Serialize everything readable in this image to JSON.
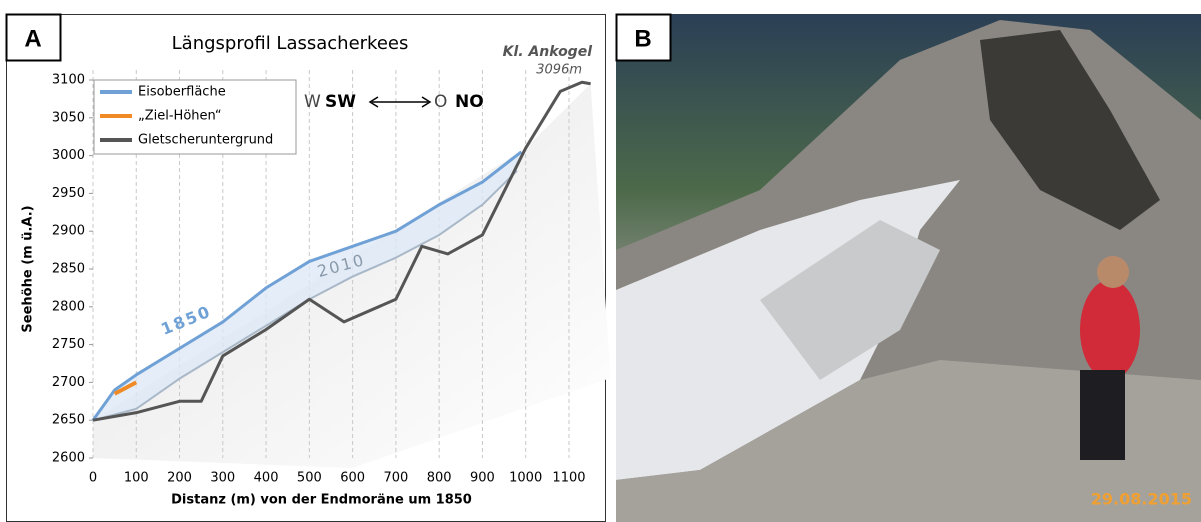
{
  "panels": {
    "a": "A",
    "b": "B"
  },
  "chart_data": {
    "type": "line",
    "title": "Längsprofil Lassacherkees",
    "x_label": "Distanz (m) von der Endmoräne um 1850",
    "y_label": "Seehöhe (m ü.A.)",
    "xlim": [
      0,
      1150
    ],
    "ylim": [
      2600,
      3100
    ],
    "xticks": [
      0,
      100,
      200,
      300,
      400,
      500,
      600,
      700,
      800,
      900,
      1000,
      1100
    ],
    "yticks": [
      2600,
      2650,
      2700,
      2750,
      2800,
      2850,
      2900,
      2950,
      3000,
      3050,
      3100
    ],
    "grid": true,
    "legend": "upper left",
    "series": [
      {
        "name": "Eisoberfläche",
        "color": "#6fa1d6",
        "x": [
          0,
          50,
          100,
          200,
          300,
          400,
          500,
          600,
          700,
          800,
          900,
          990
        ],
        "values": [
          2650,
          2690,
          2710,
          2745,
          2780,
          2825,
          2860,
          2880,
          2900,
          2935,
          2965,
          3005
        ]
      },
      {
        "name": "„Ziel-Höhen“",
        "color": "#f08a24",
        "x": [
          50,
          100
        ],
        "values": [
          2685,
          2700
        ]
      },
      {
        "name": "Gletscheruntergrund",
        "color": "#555555",
        "x": [
          0,
          100,
          200,
          250,
          300,
          400,
          500,
          580,
          700,
          760,
          820,
          900,
          1000,
          1080,
          1130,
          1150
        ],
        "values": [
          2650,
          2660,
          2675,
          2675,
          2735,
          2770,
          2810,
          2780,
          2810,
          2880,
          2870,
          2895,
          3010,
          3085,
          3097,
          3095
        ]
      }
    ],
    "labeled_lines": [
      {
        "name": "2010",
        "color": "#a9b8c8",
        "x": [
          0,
          100,
          200,
          300,
          400,
          500,
          600,
          700,
          800,
          900,
          980
        ],
        "values": [
          2650,
          2665,
          2705,
          2740,
          2775,
          2810,
          2840,
          2865,
          2895,
          2935,
          2980
        ]
      }
    ],
    "annotations": {
      "line_1850": "1850",
      "peak_name": "Kl. Ankogel",
      "peak_height": "3096m",
      "west_light": "W",
      "west_bold": "SW",
      "east_light": "O",
      "east_bold": "NO"
    }
  },
  "photo": {
    "date": "29.08.2015"
  }
}
